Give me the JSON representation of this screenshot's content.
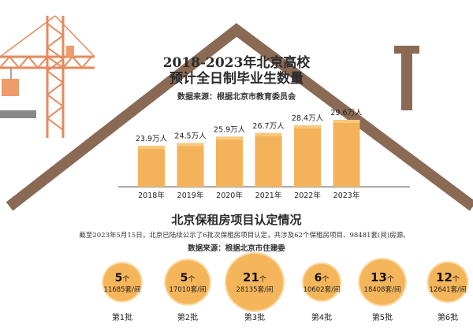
{
  "chart_data": [
    {
      "type": "bar",
      "title": "2018-2023年北京高校\n预计全日制毕业生数量",
      "title_lines": [
        "2018-2023年北京高校",
        "预计全日制毕业生数量"
      ],
      "source": "数据来源：根据北京市教育委员会",
      "categories": [
        "2018年",
        "2019年",
        "2020年",
        "2021年",
        "2022年",
        "2023年"
      ],
      "values": [
        23.9,
        24.5,
        25.9,
        26.7,
        28.4,
        29.6
      ],
      "data_labels": [
        "23.9万人",
        "24.5万人",
        "25.9万人",
        "26.7万人",
        "28.4万人",
        "29.6万人"
      ],
      "unit": "万人",
      "colors": {
        "bar": "#f4b25a",
        "bar_top": "#f7c97e"
      }
    },
    {
      "type": "bubble",
      "title": "北京保租房项目认定情况",
      "note": "截至2023年5月15日，北京已陆续公示了6批次保租房项目认定，共涉及62个保租房项目、98481套(间)房源。",
      "source": "数据来源：根据北京市住建委",
      "categories": [
        "第1批",
        "第2批",
        "第3批",
        "第4批",
        "第5批",
        "第6批"
      ],
      "projects": [
        5,
        5,
        21,
        6,
        13,
        12
      ],
      "project_unit": "个",
      "units": [
        11685,
        17010,
        28135,
        10602,
        18408,
        12641
      ],
      "units_labels": [
        "11685套/间",
        "17010套/间",
        "28135套/间",
        "10602套/间",
        "18408套/间",
        "12641套/间"
      ],
      "colors": {
        "bubble": "#f5b55a",
        "bubble_light": "#fbd9a1"
      }
    }
  ],
  "colors": {
    "roof": "#8a6a55",
    "crane": "#e48a5c",
    "bar": "#f4b25a"
  }
}
